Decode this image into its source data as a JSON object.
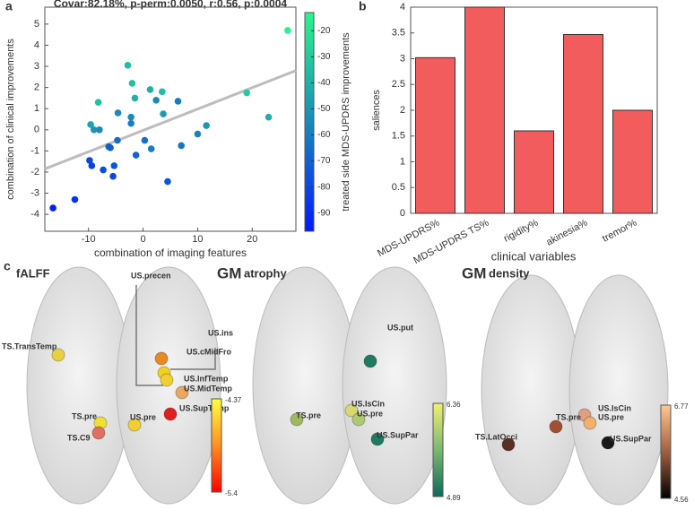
{
  "chart_data": [
    {
      "type": "scatter",
      "title": "Covar:82.18%, p-perm:0.0050, r:0.56, p:0.0004",
      "panel": "a",
      "x_label": "combination of imaging features",
      "y_label": "combination of clinical improvements",
      "x": [
        -16.5,
        -12.5,
        -9.8,
        -9.4,
        -9.6,
        -9,
        -8.2,
        -8,
        -7.3,
        -6.3,
        -6,
        -5.5,
        -5.3,
        -4.7,
        -4.6,
        -2.8,
        -2.2,
        -2,
        -2.2,
        -1.5,
        -1.3,
        0.3,
        1.3,
        1.5,
        2.4,
        3.5,
        3.7,
        4.5,
        6.4,
        7,
        10,
        11.6,
        19,
        23,
        26.5
      ],
      "values": [
        -3.7,
        -3.3,
        -1.45,
        -1.7,
        0.25,
        0,
        1.3,
        0,
        -1.9,
        -0.8,
        -0.85,
        -2.2,
        -1.7,
        -0.5,
        0.8,
        3.05,
        0.6,
        2.2,
        0.3,
        1.5,
        -1.2,
        -0.5,
        1.9,
        -0.9,
        1.4,
        1.8,
        0.75,
        -2.45,
        1.35,
        -0.75,
        -0.2,
        0.2,
        1.75,
        0.6,
        4.7
      ],
      "color_values": [
        -95,
        -88,
        -80,
        -82,
        -45,
        -50,
        -35,
        -55,
        -78,
        -70,
        -72,
        -80,
        -75,
        -65,
        -55,
        -35,
        -55,
        -35,
        -60,
        -40,
        -70,
        -65,
        -40,
        -60,
        -55,
        -35,
        -48,
        -75,
        -60,
        -62,
        -58,
        -50,
        -30,
        -40,
        -15
      ],
      "colormap": [
        "#0019ff",
        "#1a8ab8",
        "#2cf58a"
      ],
      "colorbar_label": "treated side MDS-UPDRS improvements",
      "clim": [
        -97,
        -13
      ],
      "cticks": [
        -20,
        -30,
        -40,
        -50,
        -60,
        -70,
        -80,
        -90
      ],
      "fit_line": {
        "x": [
          -18,
          28
        ],
        "y": [
          -1.85,
          2.8
        ],
        "color": "#bdbdbd"
      },
      "xlim": [
        -18,
        28
      ],
      "xticks": [
        -10,
        0,
        10,
        20
      ],
      "ylim": [
        -4.8,
        5.8
      ],
      "yticks": [
        -4,
        -3,
        -2,
        -1,
        0,
        1,
        2,
        3,
        4,
        5
      ]
    },
    {
      "type": "bar",
      "panel": "b",
      "x_label": "clinical variables",
      "y_label": "saliences",
      "categories": [
        "MDS-UPDRS%",
        "MDS-UPDRS TS%",
        "rigidity%",
        "akinesia%",
        "tremor%"
      ],
      "values": [
        3.02,
        4.0,
        1.6,
        3.47,
        2.0
      ],
      "color": "#f25c5c",
      "ylim": [
        0,
        4
      ],
      "yticks": [
        0,
        0.5,
        1,
        1.5,
        2,
        2.5,
        3,
        3.5,
        4
      ]
    }
  ],
  "brain_panel": {
    "panel": "c",
    "maps": [
      {
        "title": [
          "fALFF"
        ],
        "labels": [
          "US.precen",
          "US.ins",
          "TS.TransTemp",
          "US.cMidFro",
          "US.InfTemp",
          "US.MidTemp",
          "US.SupTemp",
          "TS.pre",
          "US.pre",
          "TS.C9"
        ],
        "colorbar": [
          "-4.37",
          "-5.4"
        ]
      },
      {
        "title": [
          "GM",
          "atrophy"
        ],
        "labels": [
          "US.put",
          "US.IsCin",
          "US.pre",
          "TS.pre",
          "US.SupPar"
        ],
        "colorbar": [
          "6.36",
          "4.89"
        ]
      },
      {
        "title": [
          "GM",
          "density"
        ],
        "labels": [
          "US.IsCin",
          "US.pre",
          "TS.pre",
          "US.SupPar",
          "TS.LatOcci"
        ],
        "colorbar": [
          "6.77",
          "4.56"
        ]
      }
    ]
  }
}
